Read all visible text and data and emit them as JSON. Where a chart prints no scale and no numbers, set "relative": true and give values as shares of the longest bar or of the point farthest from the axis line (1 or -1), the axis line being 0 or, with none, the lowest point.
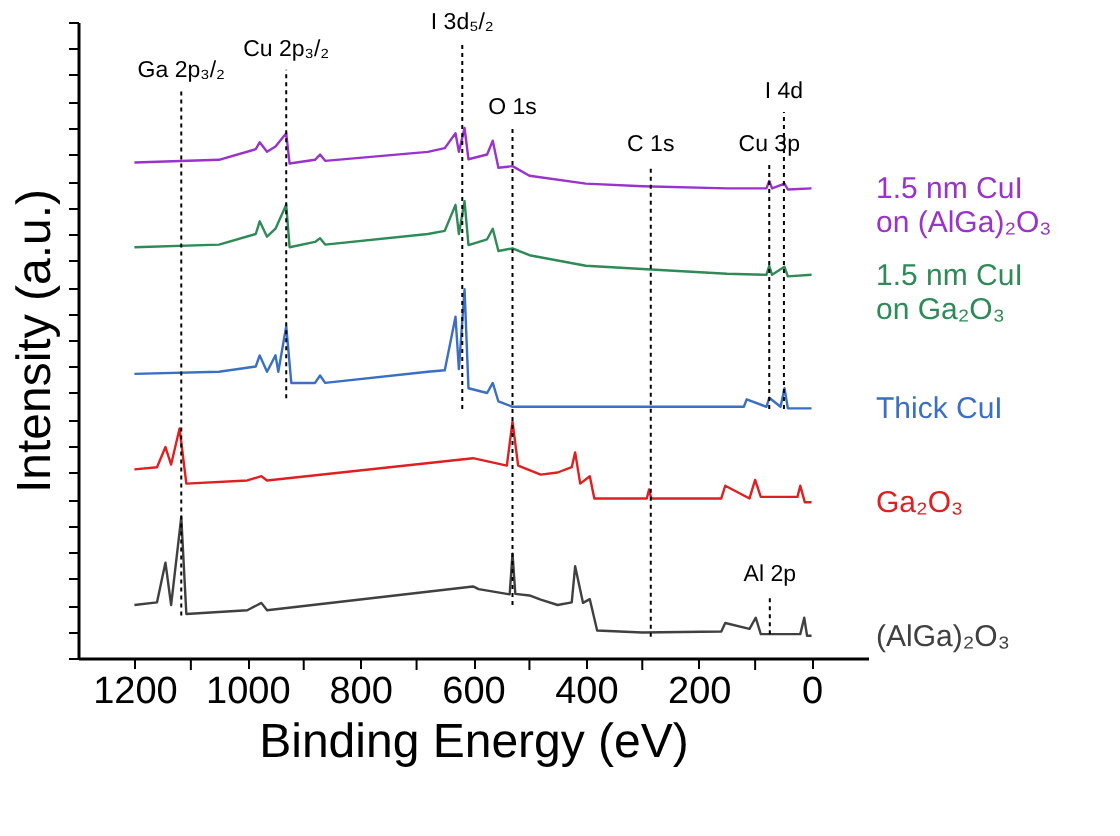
{
  "chart_data": {
    "type": "line",
    "xlabel": "Binding Energy (eV)",
    "ylabel": "Intensity (a.u.)",
    "relative": true,
    "legend": false,
    "grid": false,
    "line_style": "solid",
    "xlim": [
      1300,
      -100
    ],
    "xticks": [
      1200,
      {
        "value": 1100,
        "label": null
      },
      1000,
      {
        "value": 900,
        "label": null
      },
      800,
      {
        "value": 700,
        "label": null
      },
      600,
      {
        "value": 500,
        "label": null
      },
      400,
      {
        "value": 300,
        "label": null
      },
      200,
      {
        "value": 100,
        "label": null
      },
      0
    ],
    "series": [
      {
        "name": "1.5 nm CuI on (AlGa)₂O₃",
        "color": "#9933cc",
        "x": [
          1200,
          1050,
          985,
          978,
          965,
          950,
          931,
          925,
          880,
          871,
          862,
          680,
          650,
          631,
          625,
          615,
          608,
          575,
          565,
          555,
          530,
          500,
          400,
          300,
          150,
          80,
          75,
          70,
          48,
          42,
          0
        ],
        "values": [
          0.935,
          0.94,
          0.96,
          0.973,
          0.955,
          0.965,
          0.99,
          0.933,
          0.94,
          0.95,
          0.938,
          0.955,
          0.962,
          0.99,
          0.955,
          1.0,
          0.941,
          0.95,
          0.976,
          0.925,
          0.928,
          0.91,
          0.895,
          0.89,
          0.886,
          0.886,
          0.9,
          0.886,
          0.895,
          0.884,
          0.886
        ]
      },
      {
        "name": "1.5 nm CuI on Ga₂O₃",
        "color": "#2e8b57",
        "x": [
          1200,
          1050,
          985,
          978,
          965,
          950,
          931,
          925,
          880,
          871,
          862,
          680,
          650,
          631,
          625,
          615,
          608,
          575,
          565,
          555,
          530,
          500,
          400,
          300,
          150,
          80,
          75,
          70,
          48,
          42,
          0
        ],
        "values": [
          0.775,
          0.78,
          0.8,
          0.824,
          0.795,
          0.81,
          0.855,
          0.775,
          0.785,
          0.792,
          0.78,
          0.8,
          0.806,
          0.855,
          0.8,
          0.862,
          0.779,
          0.79,
          0.81,
          0.768,
          0.773,
          0.76,
          0.74,
          0.734,
          0.725,
          0.723,
          0.74,
          0.723,
          0.738,
          0.72,
          0.723
        ]
      },
      {
        "name": "Thick CuI",
        "color": "#3a6fc4",
        "x": [
          1200,
          1050,
          985,
          978,
          965,
          950,
          945,
          931,
          922,
          880,
          871,
          862,
          680,
          650,
          631,
          625,
          615,
          608,
          575,
          565,
          555,
          530,
          120,
          115,
          80,
          75,
          55,
          48,
          42,
          0
        ],
        "values": [
          0.536,
          0.54,
          0.55,
          0.571,
          0.54,
          0.571,
          0.54,
          0.626,
          0.519,
          0.519,
          0.533,
          0.519,
          0.54,
          0.543,
          0.644,
          0.545,
          0.696,
          0.509,
          0.5,
          0.519,
          0.484,
          0.474,
          0.474,
          0.488,
          0.474,
          0.491,
          0.474,
          0.509,
          0.471,
          0.471
        ]
      },
      {
        "name": "Ga₂O₃",
        "color": "#e02020",
        "x": [
          1200,
          1160,
          1145,
          1135,
          1120,
          1108,
          1000,
          975,
          965,
          600,
          540,
          530,
          520,
          480,
          450,
          425,
          419,
          410,
          393,
          385,
          292,
          288,
          284,
          160,
          153,
          110,
          100,
          90,
          25,
          20,
          12,
          0
        ],
        "values": [
          0.356,
          0.36,
          0.398,
          0.365,
          0.433,
          0.329,
          0.335,
          0.343,
          0.335,
          0.377,
          0.363,
          0.446,
          0.363,
          0.346,
          0.35,
          0.36,
          0.388,
          0.329,
          0.343,
          0.301,
          0.301,
          0.318,
          0.301,
          0.301,
          0.325,
          0.301,
          0.336,
          0.304,
          0.304,
          0.325,
          0.294,
          0.294
        ]
      },
      {
        "name": "(AlGa)₂O₃",
        "color": "#404040",
        "x": [
          1200,
          1160,
          1145,
          1135,
          1117,
          1108,
          1000,
          975,
          965,
          600,
          590,
          535,
          530,
          525,
          500,
          480,
          450,
          425,
          419,
          405,
          393,
          380,
          300,
          160,
          153,
          110,
          99,
          90,
          20,
          13,
          8,
          0
        ],
        "values": [
          0.1,
          0.105,
          0.18,
          0.1,
          0.266,
          0.083,
          0.09,
          0.104,
          0.09,
          0.135,
          0.13,
          0.12,
          0.197,
          0.121,
          0.118,
          0.11,
          0.1,
          0.105,
          0.173,
          0.104,
          0.111,
          0.052,
          0.048,
          0.05,
          0.066,
          0.055,
          0.076,
          0.045,
          0.045,
          0.076,
          0.042,
          0.042
        ]
      }
    ],
    "ref_lines": [
      {
        "axis": "x",
        "value": 1117,
        "label": "Ga 2p₃/₂",
        "color": "#000000",
        "line_style": "dotted"
      },
      {
        "axis": "x",
        "value": 931,
        "label": "Cu 2p₃/₂",
        "color": "#000000",
        "line_style": "dotted"
      },
      {
        "axis": "x",
        "value": 619,
        "label": "I 3d₅/₂",
        "color": "#000000",
        "line_style": "dotted"
      },
      {
        "axis": "x",
        "value": 530,
        "label": "O 1s",
        "color": "#000000",
        "line_style": "dotted"
      },
      {
        "axis": "x",
        "value": 285,
        "label": "C 1s",
        "color": "#000000",
        "line_style": "dotted"
      },
      {
        "axis": "x",
        "value": 75,
        "label": "Cu 3p",
        "color": "#000000",
        "line_style": "dotted"
      },
      {
        "axis": "x",
        "value": 49,
        "label": "I 4d",
        "color": "#000000",
        "line_style": "dotted"
      },
      {
        "axis": "x",
        "value": 74,
        "label": "Al 2p",
        "color": "#000000",
        "line_style": "dotted"
      }
    ]
  }
}
